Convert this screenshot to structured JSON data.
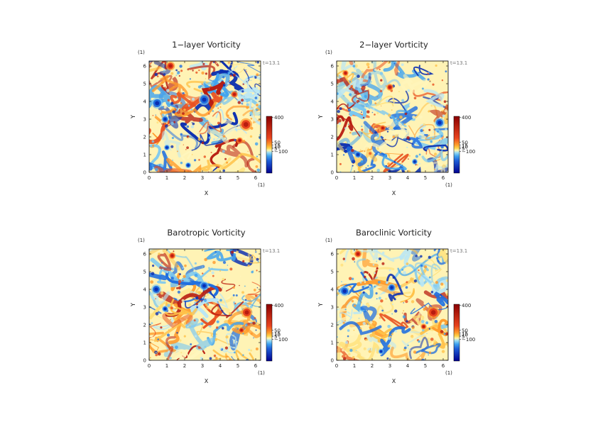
{
  "chart_data": [
    {
      "type": "heatmap",
      "title": "1−layer Vorticity",
      "xlabel": "X",
      "ylabel": "Y",
      "x_unit": "(1)",
      "y_unit": "(1)",
      "time_label": "t=13.1",
      "x_ticks": [
        "0",
        "1",
        "2",
        "3",
        "4",
        "5",
        "6"
      ],
      "y_ticks": [
        "0",
        "1",
        "2",
        "3",
        "4",
        "5",
        "6"
      ],
      "xlim": [
        0,
        6.28
      ],
      "ylim": [
        0,
        6.28
      ],
      "colorbar_labels": [
        "400",
        "50",
        "15",
        "10",
        "5",
        "−100"
      ],
      "vortices": [
        {
          "x": 5.45,
          "y": 2.7,
          "r": 0.25,
          "sign": 1
        },
        {
          "x": 3.1,
          "y": 4.1,
          "r": 0.22,
          "sign": -1
        },
        {
          "x": 0.45,
          "y": 3.9,
          "r": 0.22,
          "sign": -1
        },
        {
          "x": 1.2,
          "y": 6.0,
          "r": 0.18,
          "sign": 1
        },
        {
          "x": 0.9,
          "y": 3.0,
          "r": 0.15,
          "sign": -1
        },
        {
          "x": 4.8,
          "y": 4.4,
          "r": 0.14,
          "sign": 1
        },
        {
          "x": 5.1,
          "y": 1.8,
          "r": 0.13,
          "sign": 1
        },
        {
          "x": 2.2,
          "y": 0.4,
          "r": 0.12,
          "sign": -1
        },
        {
          "x": 1.0,
          "y": 1.4,
          "r": 0.12,
          "sign": -1
        }
      ]
    },
    {
      "type": "heatmap",
      "title": "2−layer Vorticity",
      "xlabel": "X",
      "ylabel": "Y",
      "x_unit": "(1)",
      "y_unit": "(1)",
      "time_label": "t=13.1",
      "x_ticks": [
        "0",
        "1",
        "2",
        "3",
        "4",
        "5",
        "6"
      ],
      "y_ticks": [
        "0",
        "1",
        "2",
        "3",
        "4",
        "5",
        "6"
      ],
      "xlim": [
        0,
        6.28
      ],
      "ylim": [
        0,
        6.28
      ],
      "colorbar_labels": [
        "400",
        "50",
        "15",
        "10",
        "5",
        "−100"
      ],
      "vortices": [
        {
          "x": 5.8,
          "y": 2.8,
          "r": 0.2,
          "sign": -1
        },
        {
          "x": 3.0,
          "y": 4.8,
          "r": 0.14,
          "sign": 1
        },
        {
          "x": 1.2,
          "y": 1.0,
          "r": 0.14,
          "sign": -1
        },
        {
          "x": 4.4,
          "y": 0.6,
          "r": 0.12,
          "sign": -1
        },
        {
          "x": 2.6,
          "y": 2.5,
          "r": 0.12,
          "sign": 1
        },
        {
          "x": 0.5,
          "y": 5.6,
          "r": 0.12,
          "sign": 1
        }
      ]
    },
    {
      "type": "heatmap",
      "title": "Barotropic Vorticity",
      "xlabel": "X",
      "ylabel": "Y",
      "x_unit": "(1)",
      "y_unit": "(1)",
      "time_label": "t=13.1",
      "x_ticks": [
        "0",
        "1",
        "2",
        "3",
        "4",
        "5",
        "6"
      ],
      "y_ticks": [
        "0",
        "1",
        "2",
        "3",
        "4",
        "5",
        "6"
      ],
      "xlim": [
        0,
        6.28
      ],
      "ylim": [
        0,
        6.28
      ],
      "colorbar_labels": [
        "400",
        "50",
        "15",
        "10",
        "5",
        "−100"
      ],
      "vortices": [
        {
          "x": 5.5,
          "y": 2.7,
          "r": 0.22,
          "sign": 1
        },
        {
          "x": 0.4,
          "y": 4.0,
          "r": 0.2,
          "sign": -1
        },
        {
          "x": 3.1,
          "y": 4.2,
          "r": 0.18,
          "sign": -1
        },
        {
          "x": 1.3,
          "y": 5.9,
          "r": 0.14,
          "sign": 1
        },
        {
          "x": 0.9,
          "y": 2.9,
          "r": 0.13,
          "sign": -1
        },
        {
          "x": 5.2,
          "y": 1.7,
          "r": 0.12,
          "sign": 1
        }
      ]
    },
    {
      "type": "heatmap",
      "title": "Baroclinic Vorticity",
      "xlabel": "X",
      "ylabel": "Y",
      "x_unit": "(1)",
      "y_unit": "(1)",
      "time_label": "t=13.1",
      "x_ticks": [
        "0",
        "1",
        "2",
        "3",
        "4",
        "5",
        "6"
      ],
      "y_ticks": [
        "0",
        "1",
        "2",
        "3",
        "4",
        "5",
        "6"
      ],
      "xlim": [
        0,
        6.28
      ],
      "ylim": [
        0,
        6.28
      ],
      "colorbar_labels": [
        "400",
        "50",
        "15",
        "10",
        "5",
        "−100"
      ],
      "vortices": [
        {
          "x": 5.45,
          "y": 2.7,
          "r": 0.24,
          "sign": 1
        },
        {
          "x": 0.45,
          "y": 3.9,
          "r": 0.2,
          "sign": -1
        },
        {
          "x": 3.1,
          "y": 4.1,
          "r": 0.16,
          "sign": -1
        },
        {
          "x": 1.2,
          "y": 6.0,
          "r": 0.15,
          "sign": 1
        },
        {
          "x": 4.9,
          "y": 1.9,
          "r": 0.12,
          "sign": 1
        },
        {
          "x": 2.5,
          "y": 0.5,
          "r": 0.11,
          "sign": -1
        }
      ]
    }
  ]
}
